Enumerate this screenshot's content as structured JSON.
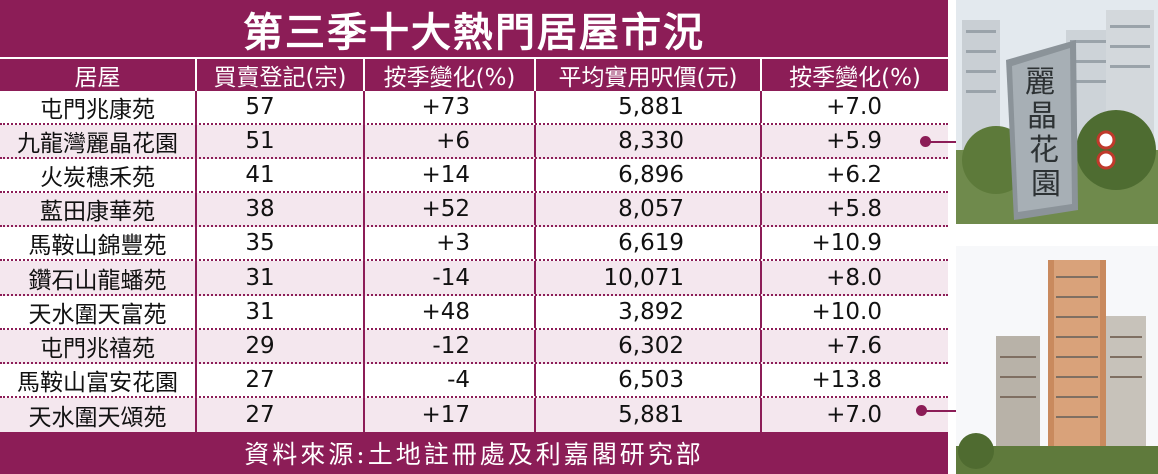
{
  "title": "第三季十大熱門居屋市況",
  "headers": [
    "居屋",
    "買賣登記(宗)",
    "按季變化(%)",
    "平均實用呎價(元)",
    "按季變化(%)"
  ],
  "rows": [
    {
      "estate": "屯門兆康苑",
      "registrations": "57",
      "reg_change": "+73",
      "avg_price": "5,881",
      "price_change": "+7.0"
    },
    {
      "estate": "九龍灣麗晶花園",
      "registrations": "51",
      "reg_change": "+6",
      "avg_price": "8,330",
      "price_change": "+5.9"
    },
    {
      "estate": "火炭穗禾苑",
      "registrations": "41",
      "reg_change": "+14",
      "avg_price": "6,896",
      "price_change": "+6.2"
    },
    {
      "estate": "藍田康華苑",
      "registrations": "38",
      "reg_change": "+52",
      "avg_price": "8,057",
      "price_change": "+5.8"
    },
    {
      "estate": "馬鞍山錦豐苑",
      "registrations": "35",
      "reg_change": "+3",
      "avg_price": "6,619",
      "price_change": "+10.9"
    },
    {
      "estate": "鑽石山龍蟠苑",
      "registrations": "31",
      "reg_change": "-14",
      "avg_price": "10,071",
      "price_change": "+8.0"
    },
    {
      "estate": "天水圍天富苑",
      "registrations": "31",
      "reg_change": "+48",
      "avg_price": "3,892",
      "price_change": "+10.0"
    },
    {
      "estate": "屯門兆禧苑",
      "registrations": "29",
      "reg_change": "-12",
      "avg_price": "6,302",
      "price_change": "+7.6"
    },
    {
      "estate": "馬鞍山富安花園",
      "registrations": "27",
      "reg_change": "-4",
      "avg_price": "6,503",
      "price_change": "+13.8"
    },
    {
      "estate": "天水圍天頌苑",
      "registrations": "27",
      "reg_change": "+17",
      "avg_price": "5,881",
      "price_change": "+7.0"
    }
  ],
  "source": "資料來源:土地註冊處及利嘉閣研究部",
  "photo_sign_text": "麗晶花園",
  "colors": {
    "accent": "#8c1d57",
    "row_shade": "#f4e7ee"
  }
}
